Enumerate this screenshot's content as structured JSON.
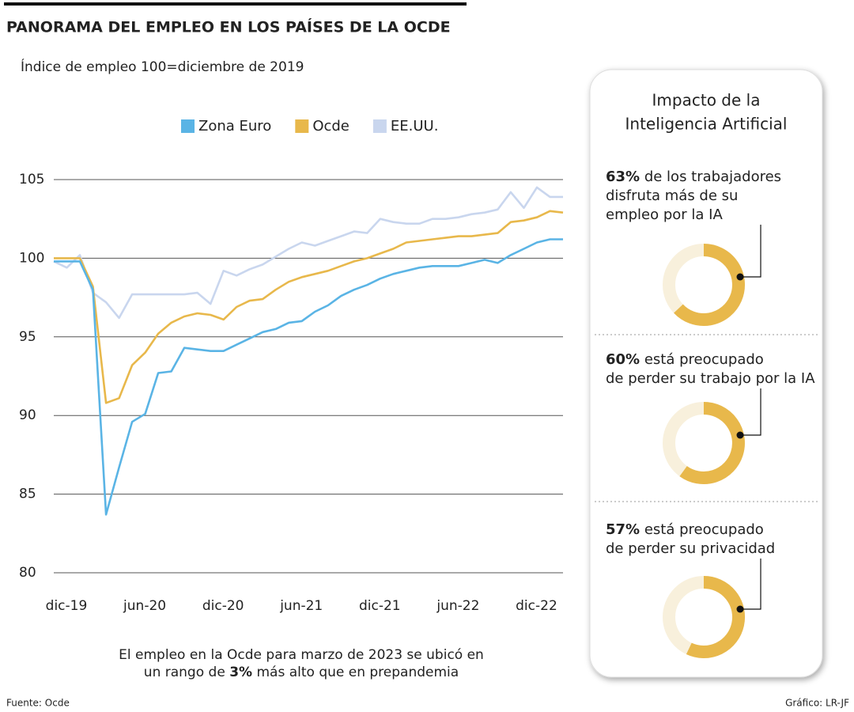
{
  "chart_data": [
    {
      "type": "line",
      "title": "PANORAMA DEL EMPLEO EN LOS PAÍSES DE LA OCDE",
      "subtitle": "Índice de empleo 100=diciembre de 2019",
      "categories": [
        "dic-19",
        null,
        null,
        null,
        null,
        null,
        "jun-20",
        null,
        null,
        null,
        null,
        null,
        "dic-20",
        null,
        null,
        null,
        null,
        null,
        "jun-21",
        null,
        null,
        null,
        null,
        null,
        "dic-21",
        null,
        null,
        null,
        null,
        null,
        "jun-22",
        null,
        null,
        null,
        null,
        null,
        "dic-22",
        null,
        null,
        null
      ],
      "series": [
        {
          "name": "Zona Euro",
          "color": "#5ab4e5",
          "values": [
            99.8,
            99.8,
            99.8,
            98.0,
            83.7,
            86.7,
            89.6,
            90.1,
            92.7,
            92.8,
            94.3,
            94.2,
            94.1,
            94.1,
            94.5,
            94.9,
            95.3,
            95.5,
            95.9,
            96.0,
            96.6,
            97.0,
            97.6,
            98.0,
            98.3,
            98.7,
            99.0,
            99.2,
            99.4,
            99.5,
            99.5,
            99.5,
            99.7,
            99.9,
            99.7,
            100.2,
            100.6,
            101.0,
            101.2,
            101.2
          ]
        },
        {
          "name": "Ocde",
          "color": "#e8b84b",
          "values": [
            100,
            100,
            100,
            98.2,
            90.8,
            91.1,
            93.2,
            94.0,
            95.2,
            95.9,
            96.3,
            96.5,
            96.4,
            96.1,
            96.9,
            97.3,
            97.4,
            98.0,
            98.5,
            98.8,
            99.0,
            99.2,
            99.5,
            99.8,
            100.0,
            100.3,
            100.6,
            101.0,
            101.1,
            101.2,
            101.3,
            101.4,
            101.4,
            101.5,
            101.6,
            102.3,
            102.4,
            102.6,
            103.0,
            102.9
          ]
        },
        {
          "name": "EE.UU.",
          "color": "#c9d6ee",
          "values": [
            99.8,
            99.4,
            100.2,
            97.8,
            97.2,
            96.2,
            97.7,
            97.7,
            97.7,
            97.7,
            97.7,
            97.8,
            97.1,
            99.2,
            98.9,
            99.3,
            99.6,
            100.1,
            100.6,
            101.0,
            100.8,
            101.1,
            101.4,
            101.7,
            101.6,
            102.5,
            102.3,
            102.2,
            102.2,
            102.5,
            102.5,
            102.6,
            102.8,
            102.9,
            103.1,
            104.2,
            103.2,
            104.5,
            103.9,
            103.9
          ]
        }
      ],
      "ylim": [
        80,
        105
      ],
      "yticks": [
        80,
        85,
        90,
        95,
        100,
        105
      ],
      "grid": true,
      "note": [
        "El empleo en la Ocde para marzo de 2023 se ubicó en",
        "un rango de",
        "3%",
        "más alto que en prepandemia"
      ]
    },
    {
      "type": "donut",
      "values": [
        63
      ],
      "value_labels": [
        "63%"
      ],
      "color": "#e8b84b",
      "track": "#f8f0dc",
      "text": [
        "de los trabajadores",
        "disfruta más de su",
        "empleo por la IA"
      ]
    },
    {
      "type": "donut",
      "values": [
        60
      ],
      "value_labels": [
        "60%"
      ],
      "color": "#e8b84b",
      "track": "#f8f0dc",
      "text": [
        "está preocupado",
        "de perder su trabajo por la IA"
      ]
    },
    {
      "type": "donut",
      "values": [
        57
      ],
      "value_labels": [
        "57%"
      ],
      "color": "#e8b84b",
      "track": "#f8f0dc",
      "text": [
        "está preocupado",
        "de perder su privacidad"
      ]
    }
  ],
  "panel_title": [
    "Impacto de la",
    "Inteligencia Artificial"
  ],
  "source": "Fuente: Ocde",
  "credit": "Gráfico: LR-JF"
}
